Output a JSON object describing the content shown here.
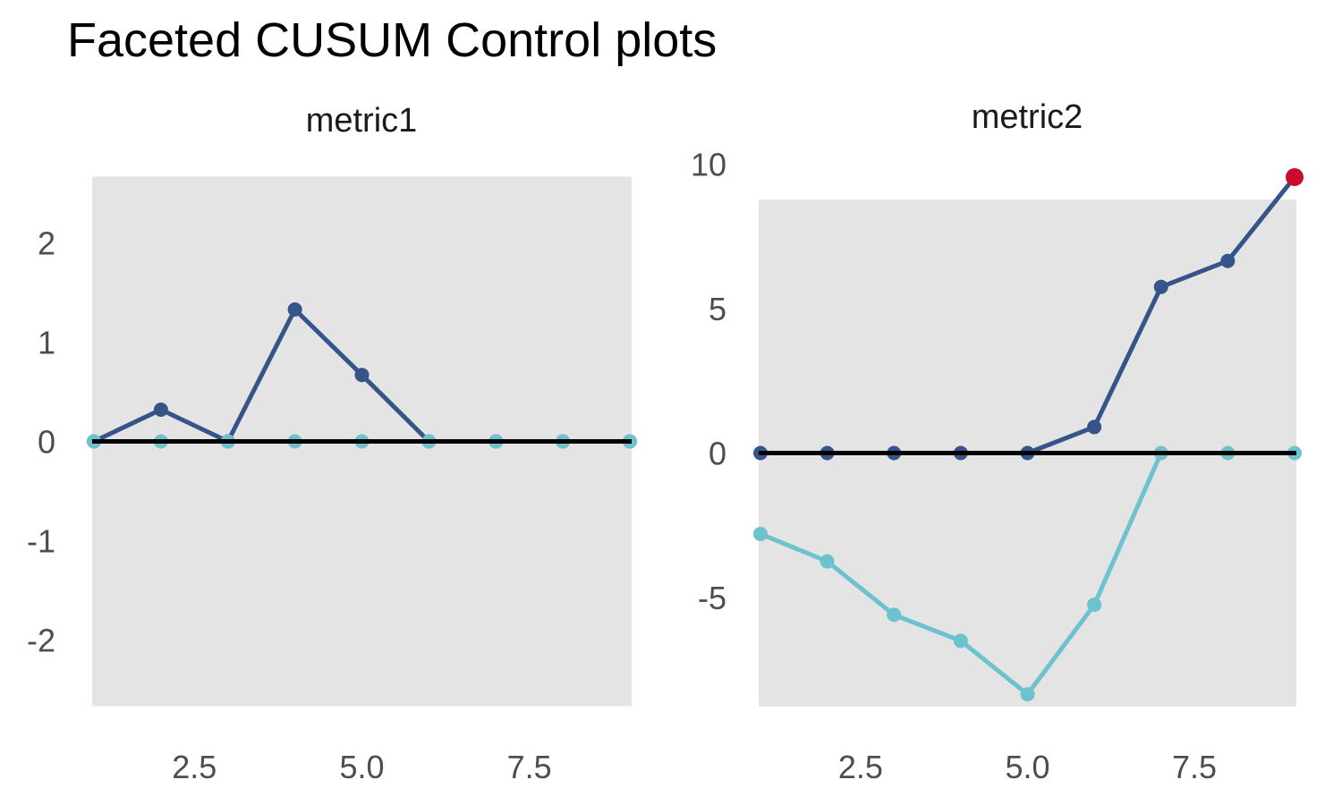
{
  "page_title": "Faceted CUSUM Control plots",
  "palette": {
    "high_series": "#35548A",
    "low_series": "#6CC3CE",
    "violation": "#CB0A2C",
    "control_band": "#E4E4E4",
    "center_line": "#000000",
    "tick_text": "#4D4D4D",
    "strip_text": "#1A1A1A"
  },
  "chart_data": [
    {
      "type": "line",
      "facet_label": "metric1",
      "x": [
        1,
        2,
        3,
        4,
        5,
        6,
        7,
        8,
        9
      ],
      "series": [
        {
          "name": "cusum_high",
          "color_key": "high_series",
          "values": [
            0,
            0.32,
            0,
            1.33,
            0.67,
            0,
            0,
            0,
            0
          ]
        },
        {
          "name": "cusum_low",
          "color_key": "low_series",
          "values": [
            0,
            0,
            0,
            0,
            0,
            0,
            0,
            0,
            0
          ]
        }
      ],
      "center_line": 0,
      "control_band": {
        "lower": -2.67,
        "upper": 2.67
      },
      "violations": [],
      "x_ticks": [
        "2.5",
        "5.0",
        "7.5"
      ],
      "x_tick_values": [
        2.5,
        5,
        7.5
      ],
      "y_ticks": [
        "2",
        "1",
        "0",
        "-1",
        "-2"
      ],
      "y_tick_values": [
        2,
        1,
        0,
        -1,
        -2
      ],
      "ylim": [
        -2.67,
        2.67
      ],
      "grid": false,
      "legend": false
    },
    {
      "type": "line",
      "facet_label": "metric2",
      "x": [
        1,
        2,
        3,
        4,
        5,
        6,
        7,
        8,
        9
      ],
      "series": [
        {
          "name": "cusum_high",
          "color_key": "high_series",
          "values": [
            0,
            0,
            0,
            0,
            0,
            0.9,
            5.75,
            6.65,
            9.55
          ]
        },
        {
          "name": "cusum_low",
          "color_key": "low_series",
          "values": [
            -2.8,
            -3.75,
            -5.6,
            -6.5,
            -8.35,
            -5.25,
            0,
            0,
            0
          ]
        }
      ],
      "center_line": 0,
      "control_band": {
        "lower": -8.77,
        "upper": 8.77
      },
      "violations": [
        {
          "series": "cusum_high",
          "point_index": 8
        }
      ],
      "x_ticks": [
        "2.5",
        "5.0",
        "7.5"
      ],
      "x_tick_values": [
        2.5,
        5,
        7.5
      ],
      "y_ticks": [
        "10",
        "5",
        "0",
        "-5"
      ],
      "y_tick_values": [
        10,
        5,
        0,
        -5
      ],
      "ylim": [
        -8.77,
        9.55
      ],
      "grid": false,
      "legend": false
    }
  ]
}
